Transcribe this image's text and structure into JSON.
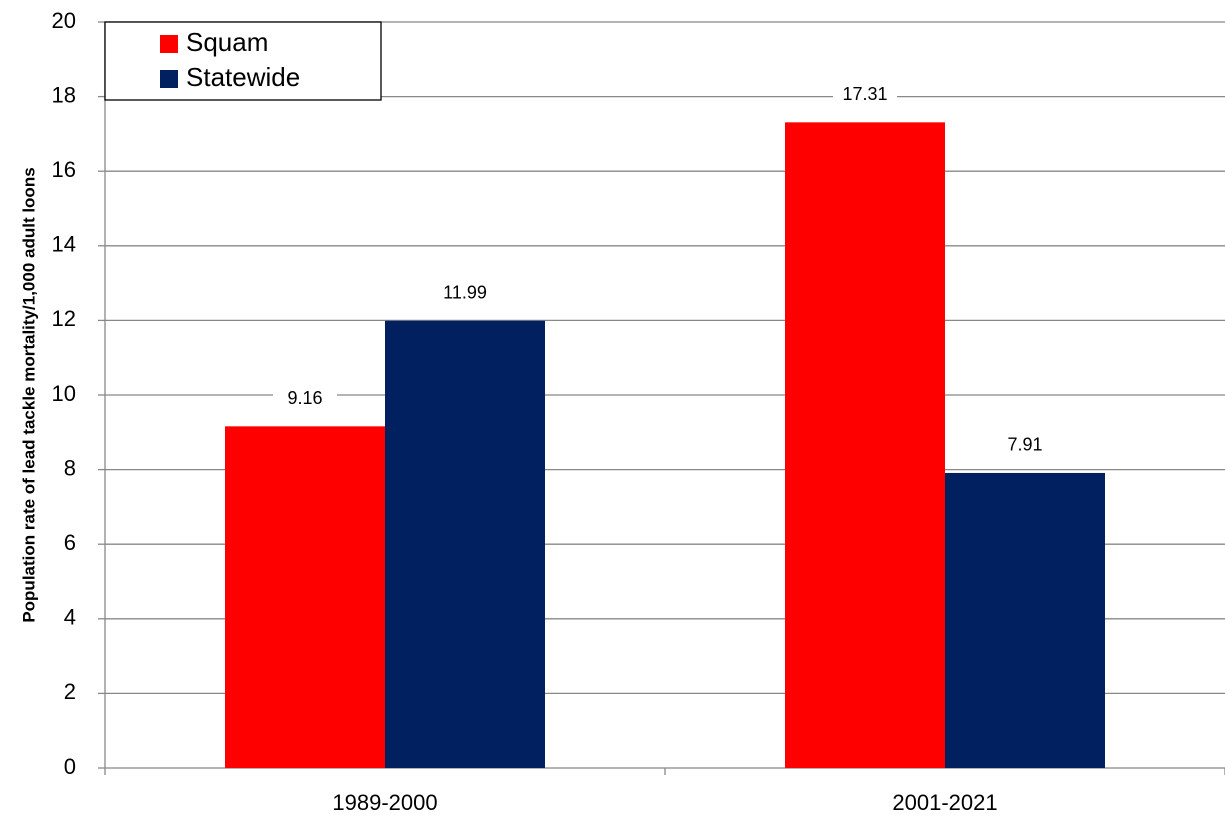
{
  "chart_data": {
    "type": "bar",
    "y_label": "Population rate of lead tackle mortality/1,000 adult loons",
    "categories": [
      "1989-2000",
      "2001-2021"
    ],
    "series": [
      {
        "name": "Squam",
        "color": "#ff0000",
        "values": [
          9.16,
          17.31
        ]
      },
      {
        "name": "Statewide",
        "color": "#002060",
        "values": [
          11.99,
          7.91
        ]
      }
    ],
    "ylim": [
      0,
      20
    ],
    "yticks": [
      0,
      2,
      4,
      6,
      8,
      10,
      12,
      14,
      16,
      18,
      20
    ],
    "grid": true,
    "legend": "top-left"
  }
}
